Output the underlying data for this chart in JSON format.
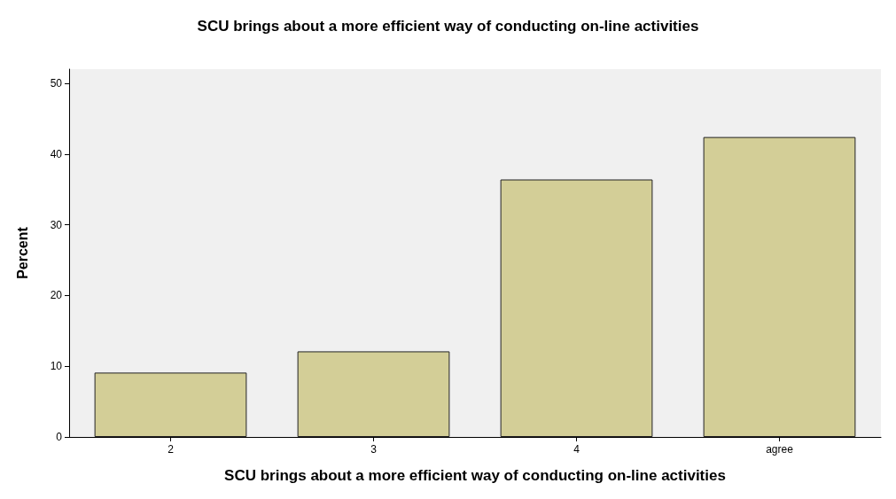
{
  "chart_data": {
    "type": "bar",
    "title": "SCU brings about a more efficient way of conducting on-line activities",
    "xlabel": "SCU brings about a more efficient way of conducting on-line activities",
    "ylabel": "Percent",
    "categories": [
      "2",
      "3",
      "4",
      "agree"
    ],
    "values": [
      9.1,
      12.1,
      36.4,
      42.4
    ],
    "color": "#d3ce97",
    "ylim": [
      0,
      52
    ],
    "yticks": [
      0,
      10,
      20,
      30,
      40,
      50
    ],
    "grid": false
  }
}
